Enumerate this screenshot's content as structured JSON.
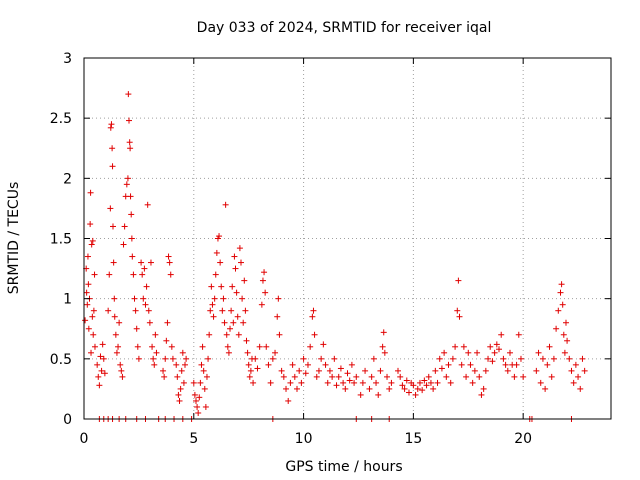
{
  "chart_data": {
    "type": "scatter",
    "title": "Day 033 of 2024, SRMTID for receiver iqal",
    "xlabel": "GPS time / hours",
    "ylabel": "SRMTID / TECUs",
    "xlim": [
      0,
      24
    ],
    "ylim": [
      0,
      3
    ],
    "x_ticks": [
      0,
      5,
      10,
      15,
      20
    ],
    "y_ticks": [
      0,
      0.5,
      1,
      1.5,
      2,
      2.5,
      3
    ],
    "x_tick_labels": [
      "0",
      "5",
      "10",
      "15",
      "20"
    ],
    "y_tick_labels": [
      "0",
      "0.5",
      "1",
      "1.5",
      "2",
      "2.5",
      "3"
    ],
    "grid": true,
    "marker": "+",
    "color": "#e00000",
    "series": [
      {
        "name": "SRMTID",
        "points": [
          [
            0.05,
            0.82
          ],
          [
            0.1,
            1.25
          ],
          [
            0.12,
            1.05
          ],
          [
            0.15,
            0.95
          ],
          [
            0.18,
            1.35
          ],
          [
            0.2,
            1.12
          ],
          [
            0.22,
            0.75
          ],
          [
            0.25,
            1.0
          ],
          [
            0.28,
            1.62
          ],
          [
            0.3,
            1.88
          ],
          [
            0.32,
            0.55
          ],
          [
            0.35,
            1.45
          ],
          [
            0.38,
            0.85
          ],
          [
            0.4,
            1.48
          ],
          [
            0.42,
            0.7
          ],
          [
            0.45,
            0.9
          ],
          [
            0.48,
            1.2
          ],
          [
            0.5,
            0.6
          ],
          [
            0.6,
            0.45
          ],
          [
            0.65,
            0.35
          ],
          [
            0.7,
            0.28
          ],
          [
            0.75,
            0.52
          ],
          [
            0.8,
            0.4
          ],
          [
            0.85,
            0.62
          ],
          [
            0.9,
            0.5
          ],
          [
            0.95,
            0.38
          ],
          [
            1.1,
            0.9
          ],
          [
            1.15,
            1.2
          ],
          [
            1.2,
            1.75
          ],
          [
            1.22,
            2.42
          ],
          [
            1.25,
            2.45
          ],
          [
            1.28,
            2.25
          ],
          [
            1.3,
            2.1
          ],
          [
            1.32,
            1.6
          ],
          [
            1.35,
            1.3
          ],
          [
            1.38,
            1.0
          ],
          [
            1.4,
            0.85
          ],
          [
            1.45,
            0.7
          ],
          [
            1.5,
            0.55
          ],
          [
            1.55,
            0.6
          ],
          [
            1.6,
            0.8
          ],
          [
            1.65,
            0.45
          ],
          [
            1.7,
            0.4
          ],
          [
            1.75,
            0.35
          ],
          [
            1.8,
            1.45
          ],
          [
            1.85,
            1.6
          ],
          [
            1.9,
            1.85
          ],
          [
            1.95,
            1.95
          ],
          [
            2.0,
            2.0
          ],
          [
            2.02,
            2.7
          ],
          [
            2.05,
            2.48
          ],
          [
            2.08,
            2.3
          ],
          [
            2.1,
            2.25
          ],
          [
            2.12,
            1.85
          ],
          [
            2.15,
            1.7
          ],
          [
            2.18,
            1.5
          ],
          [
            2.2,
            1.35
          ],
          [
            2.25,
            1.2
          ],
          [
            2.3,
            1.0
          ],
          [
            2.35,
            0.9
          ],
          [
            2.4,
            0.75
          ],
          [
            2.45,
            0.6
          ],
          [
            2.5,
            0.5
          ],
          [
            2.6,
            1.3
          ],
          [
            2.65,
            1.2
          ],
          [
            2.7,
            1.0
          ],
          [
            2.75,
            1.25
          ],
          [
            2.8,
            0.95
          ],
          [
            2.85,
            1.1
          ],
          [
            2.9,
            1.78
          ],
          [
            2.95,
            0.9
          ],
          [
            3.0,
            0.8
          ],
          [
            3.05,
            1.3
          ],
          [
            3.1,
            0.6
          ],
          [
            3.15,
            0.5
          ],
          [
            3.2,
            0.45
          ],
          [
            3.25,
            0.7
          ],
          [
            3.3,
            0.55
          ],
          [
            3.6,
            0.4
          ],
          [
            3.65,
            0.35
          ],
          [
            3.7,
            0.5
          ],
          [
            3.75,
            0.65
          ],
          [
            3.8,
            0.8
          ],
          [
            3.85,
            1.35
          ],
          [
            3.9,
            1.3
          ],
          [
            3.95,
            1.2
          ],
          [
            4.0,
            0.6
          ],
          [
            4.05,
            0.5
          ],
          [
            4.2,
            0.45
          ],
          [
            4.25,
            0.35
          ],
          [
            4.3,
            0.2
          ],
          [
            4.35,
            0.15
          ],
          [
            4.4,
            0.25
          ],
          [
            4.45,
            0.4
          ],
          [
            4.5,
            0.55
          ],
          [
            4.55,
            0.3
          ],
          [
            4.6,
            0.45
          ],
          [
            4.65,
            0.5
          ],
          [
            5.0,
            0.3
          ],
          [
            5.05,
            0.2
          ],
          [
            5.1,
            0.15
          ],
          [
            5.15,
            0.1
          ],
          [
            5.2,
            0.05
          ],
          [
            5.25,
            0.18
          ],
          [
            5.3,
            0.3
          ],
          [
            5.35,
            0.45
          ],
          [
            5.4,
            0.6
          ],
          [
            5.45,
            0.4
          ],
          [
            5.5,
            0.25
          ],
          [
            5.55,
            0.1
          ],
          [
            5.6,
            0.35
          ],
          [
            5.65,
            0.5
          ],
          [
            5.7,
            0.7
          ],
          [
            5.75,
            0.9
          ],
          [
            5.8,
            1.1
          ],
          [
            5.85,
            0.95
          ],
          [
            5.9,
            0.85
          ],
          [
            5.95,
            1.0
          ],
          [
            6.0,
            1.2
          ],
          [
            6.05,
            1.38
          ],
          [
            6.1,
            1.5
          ],
          [
            6.15,
            1.52
          ],
          [
            6.2,
            1.3
          ],
          [
            6.25,
            1.1
          ],
          [
            6.3,
            0.9
          ],
          [
            6.35,
            1.0
          ],
          [
            6.4,
            0.8
          ],
          [
            6.45,
            1.78
          ],
          [
            6.5,
            0.7
          ],
          [
            6.55,
            0.6
          ],
          [
            6.6,
            0.55
          ],
          [
            6.65,
            0.75
          ],
          [
            6.7,
            0.9
          ],
          [
            6.75,
            1.1
          ],
          [
            6.8,
            0.8
          ],
          [
            6.85,
            1.35
          ],
          [
            6.9,
            1.25
          ],
          [
            6.95,
            1.05
          ],
          [
            7.0,
            0.85
          ],
          [
            7.05,
            0.7
          ],
          [
            7.1,
            1.42
          ],
          [
            7.15,
            1.3
          ],
          [
            7.2,
            1.0
          ],
          [
            7.25,
            0.8
          ],
          [
            7.3,
            1.15
          ],
          [
            7.35,
            0.9
          ],
          [
            7.4,
            0.65
          ],
          [
            7.45,
            0.55
          ],
          [
            7.5,
            0.45
          ],
          [
            7.55,
            0.35
          ],
          [
            7.6,
            0.4
          ],
          [
            7.65,
            0.5
          ],
          [
            7.7,
            0.3
          ],
          [
            7.8,
            0.5
          ],
          [
            7.9,
            0.42
          ],
          [
            8.0,
            0.6
          ],
          [
            8.1,
            0.95
          ],
          [
            8.15,
            1.15
          ],
          [
            8.2,
            1.22
          ],
          [
            8.25,
            1.05
          ],
          [
            8.3,
            0.6
          ],
          [
            8.4,
            0.45
          ],
          [
            8.5,
            0.3
          ],
          [
            8.6,
            0.5
          ],
          [
            8.7,
            0.55
          ],
          [
            8.8,
            0.85
          ],
          [
            8.85,
            1.0
          ],
          [
            8.9,
            0.7
          ],
          [
            9.0,
            0.4
          ],
          [
            9.1,
            0.35
          ],
          [
            9.2,
            0.25
          ],
          [
            9.3,
            0.15
          ],
          [
            9.4,
            0.3
          ],
          [
            9.5,
            0.45
          ],
          [
            9.6,
            0.35
          ],
          [
            9.7,
            0.25
          ],
          [
            9.8,
            0.4
          ],
          [
            9.9,
            0.3
          ],
          [
            10.0,
            0.5
          ],
          [
            10.1,
            0.38
          ],
          [
            10.2,
            0.45
          ],
          [
            10.3,
            0.6
          ],
          [
            10.4,
            0.85
          ],
          [
            10.45,
            0.9
          ],
          [
            10.5,
            0.7
          ],
          [
            10.6,
            0.35
          ],
          [
            10.7,
            0.4
          ],
          [
            10.8,
            0.5
          ],
          [
            10.9,
            0.62
          ],
          [
            11.0,
            0.45
          ],
          [
            11.1,
            0.3
          ],
          [
            11.2,
            0.4
          ],
          [
            11.3,
            0.35
          ],
          [
            11.4,
            0.5
          ],
          [
            11.5,
            0.28
          ],
          [
            11.6,
            0.35
          ],
          [
            11.7,
            0.42
          ],
          [
            11.8,
            0.3
          ],
          [
            11.9,
            0.25
          ],
          [
            12.0,
            0.38
          ],
          [
            12.1,
            0.32
          ],
          [
            12.2,
            0.45
          ],
          [
            12.3,
            0.3
          ],
          [
            12.4,
            0.35
          ],
          [
            12.6,
            0.2
          ],
          [
            12.7,
            0.3
          ],
          [
            12.8,
            0.4
          ],
          [
            13.0,
            0.25
          ],
          [
            13.1,
            0.35
          ],
          [
            13.2,
            0.5
          ],
          [
            13.3,
            0.3
          ],
          [
            13.4,
            0.2
          ],
          [
            13.5,
            0.4
          ],
          [
            13.6,
            0.6
          ],
          [
            13.65,
            0.72
          ],
          [
            13.7,
            0.55
          ],
          [
            13.8,
            0.35
          ],
          [
            13.9,
            0.25
          ],
          [
            14.0,
            0.3
          ],
          [
            14.3,
            0.4
          ],
          [
            14.4,
            0.35
          ],
          [
            14.5,
            0.28
          ],
          [
            14.6,
            0.25
          ],
          [
            14.7,
            0.32
          ],
          [
            14.8,
            0.22
          ],
          [
            14.9,
            0.3
          ],
          [
            15.0,
            0.28
          ],
          [
            15.1,
            0.2
          ],
          [
            15.2,
            0.25
          ],
          [
            15.3,
            0.3
          ],
          [
            15.4,
            0.24
          ],
          [
            15.5,
            0.32
          ],
          [
            15.6,
            0.28
          ],
          [
            15.7,
            0.35
          ],
          [
            15.8,
            0.3
          ],
          [
            15.9,
            0.25
          ],
          [
            16.0,
            0.4
          ],
          [
            16.1,
            0.3
          ],
          [
            16.2,
            0.5
          ],
          [
            16.3,
            0.42
          ],
          [
            16.4,
            0.55
          ],
          [
            16.5,
            0.35
          ],
          [
            16.6,
            0.45
          ],
          [
            16.7,
            0.3
          ],
          [
            16.8,
            0.5
          ],
          [
            16.9,
            0.6
          ],
          [
            17.0,
            0.9
          ],
          [
            17.05,
            1.15
          ],
          [
            17.1,
            0.85
          ],
          [
            17.2,
            0.45
          ],
          [
            17.3,
            0.6
          ],
          [
            17.4,
            0.35
          ],
          [
            17.5,
            0.55
          ],
          [
            17.6,
            0.45
          ],
          [
            17.7,
            0.3
          ],
          [
            17.8,
            0.4
          ],
          [
            17.9,
            0.55
          ],
          [
            18.0,
            0.35
          ],
          [
            18.1,
            0.2
          ],
          [
            18.2,
            0.25
          ],
          [
            18.3,
            0.4
          ],
          [
            18.4,
            0.5
          ],
          [
            18.5,
            0.6
          ],
          [
            18.6,
            0.48
          ],
          [
            18.7,
            0.55
          ],
          [
            18.8,
            0.62
          ],
          [
            18.9,
            0.58
          ],
          [
            19.0,
            0.7
          ],
          [
            19.1,
            0.5
          ],
          [
            19.2,
            0.45
          ],
          [
            19.3,
            0.4
          ],
          [
            19.4,
            0.55
          ],
          [
            19.5,
            0.45
          ],
          [
            19.6,
            0.35
          ],
          [
            19.7,
            0.45
          ],
          [
            19.8,
            0.7
          ],
          [
            19.9,
            0.5
          ],
          [
            20.0,
            0.35
          ],
          [
            20.6,
            0.4
          ],
          [
            20.7,
            0.55
          ],
          [
            20.8,
            0.3
          ],
          [
            20.9,
            0.5
          ],
          [
            21.0,
            0.25
          ],
          [
            21.1,
            0.45
          ],
          [
            21.2,
            0.6
          ],
          [
            21.3,
            0.35
          ],
          [
            21.4,
            0.5
          ],
          [
            21.5,
            0.75
          ],
          [
            21.6,
            0.9
          ],
          [
            21.7,
            1.05
          ],
          [
            21.75,
            1.12
          ],
          [
            21.8,
            0.95
          ],
          [
            21.85,
            0.7
          ],
          [
            21.9,
            0.55
          ],
          [
            21.95,
            0.8
          ],
          [
            22.0,
            0.65
          ],
          [
            22.1,
            0.5
          ],
          [
            22.2,
            0.4
          ],
          [
            22.3,
            0.3
          ],
          [
            22.4,
            0.45
          ],
          [
            22.5,
            0.35
          ],
          [
            22.6,
            0.25
          ],
          [
            22.7,
            0.5
          ],
          [
            22.8,
            0.4
          ],
          [
            0.7,
            0.0
          ],
          [
            0.9,
            0.0
          ],
          [
            1.1,
            0.0
          ],
          [
            1.3,
            0.0
          ],
          [
            1.6,
            0.0
          ],
          [
            1.9,
            0.0
          ],
          [
            2.4,
            0.0
          ],
          [
            2.8,
            0.0
          ],
          [
            3.4,
            0.0
          ],
          [
            3.7,
            0.0
          ],
          [
            4.1,
            0.0
          ],
          [
            4.5,
            0.0
          ],
          [
            4.9,
            0.0
          ],
          [
            8.6,
            0.0
          ],
          [
            12.4,
            0.0
          ],
          [
            13.1,
            0.0
          ],
          [
            13.9,
            0.0
          ],
          [
            20.3,
            0.0
          ],
          [
            20.4,
            0.0
          ],
          [
            22.2,
            0.0
          ]
        ]
      }
    ]
  }
}
